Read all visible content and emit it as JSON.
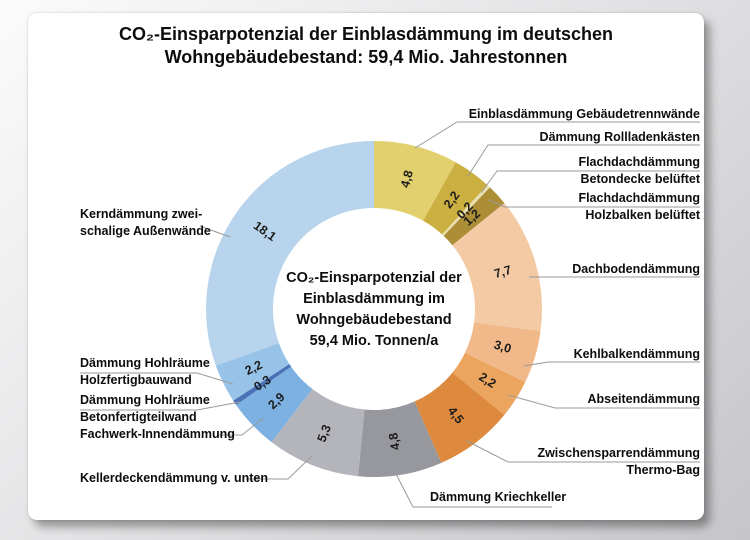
{
  "page": {
    "background_top": "#fbfbfb",
    "background_bottom": "#c6c6c9",
    "card_color": "#ffffff",
    "leader_line_color": "#9a9a9a"
  },
  "title": {
    "line1": "CO₂-Einsparpotenzial der Einblasdämmung im deutschen",
    "line2": "Wohngebäudebestand: 59,4 Mio. Jahrestonnen"
  },
  "center_label": {
    "lines": [
      "CO₂-Einsparpotenzial der",
      "Einblasdämmung im",
      "Wohngebäudebestand",
      "59,4 Mio. Tonnen/a"
    ]
  },
  "chart_data": {
    "type": "pie",
    "subtype": "donut",
    "title": "CO₂-Einsparpotenzial der Einblasdämmung im deutschen Wohngebäudebestand: 59,4 Mio. Jahrestonnen",
    "total": 59.4,
    "total_label": "59,4 Mio. Tonnen/a",
    "start_angle_deg": 0,
    "direction": "clockwise",
    "legend_position": "callouts",
    "slices": [
      {
        "label": "Einblasdämmung Gebäudetrennwände",
        "value": 4.8,
        "value_label": "4,8",
        "color": "#e2cf6e",
        "callout_lines": [
          "Einblasdämmung Gebäudetrennwände"
        ]
      },
      {
        "label": "Dämmung Rollladenkästen",
        "value": 2.2,
        "value_label": "2,2",
        "color": "#cbb041",
        "callout_lines": [
          "Dämmung Rollladenkästen"
        ]
      },
      {
        "label": "Flachdachdämmung Betondecke belüftet",
        "value": 0.2,
        "value_label": "0,2",
        "color": "#e9dfb0",
        "callout_lines": [
          "Flachdachdämmung",
          "Betondecke belüftet"
        ]
      },
      {
        "label": "Flachdachdämmung Holzbalken belüftet",
        "value": 1.2,
        "value_label": "1,2",
        "color": "#ab8e35",
        "callout_lines": [
          "Flachdachdämmung",
          "Holzbalken belüftet"
        ]
      },
      {
        "label": "Dachbodendämmung",
        "value": 7.7,
        "value_label": "7,7",
        "color": "#f4caa4",
        "callout_lines": [
          "Dachbodendämmung"
        ]
      },
      {
        "label": "Kehlbalkendämmung",
        "value": 3.0,
        "value_label": "3,0",
        "color": "#f1b98a",
        "callout_lines": [
          "Kehlbalkendämmung"
        ]
      },
      {
        "label": "Abseitendämmung",
        "value": 2.2,
        "value_label": "2,2",
        "color": "#eca55e",
        "callout_lines": [
          "Abseitendämmung"
        ]
      },
      {
        "label": "Zwischensparrendämmung Thermo-Bag",
        "value": 4.5,
        "value_label": "4,5",
        "color": "#de8a3e",
        "callout_lines": [
          "Zwischensparrendämmung",
          "Thermo-Bag"
        ]
      },
      {
        "label": "Dämmung Kriechkeller",
        "value": 4.8,
        "value_label": "4,8",
        "color": "#97989e",
        "callout_lines": [
          "Dämmung Kriechkeller"
        ]
      },
      {
        "label": "Kellerdeckendämmung v. unten",
        "value": 5.3,
        "value_label": "5,3",
        "color": "#b4b4bb",
        "callout_lines": [
          "Kellerdeckendämmung v. unten"
        ]
      },
      {
        "label": "Fachwerk-Innendämmung",
        "value": 2.9,
        "value_label": "2,9",
        "color": "#7db1e2",
        "callout_lines": [
          "Fachwerk-Innendämmung"
        ]
      },
      {
        "label": "Dämmung Hohlräume Betonfertigteilwand",
        "value": 0.3,
        "value_label": "0,3",
        "color": "#4a73b7",
        "callout_lines": [
          "Dämmung Hohlräume",
          "Betonfertigteilwand"
        ]
      },
      {
        "label": "Dämmung Hohlräume Holzfertigbauwand",
        "value": 2.2,
        "value_label": "2,2",
        "color": "#98c3e9",
        "callout_lines": [
          "Dämmung Hohlräume",
          "Holzfertigbauwand"
        ]
      },
      {
        "label": "Kerndämmung zweischalige Außenwände",
        "value": 18.1,
        "value_label": "18,1",
        "color": "#b7d4ec",
        "callout_lines": [
          "Kerndämmung zwei-",
          "schalige Außenwände"
        ]
      }
    ]
  }
}
